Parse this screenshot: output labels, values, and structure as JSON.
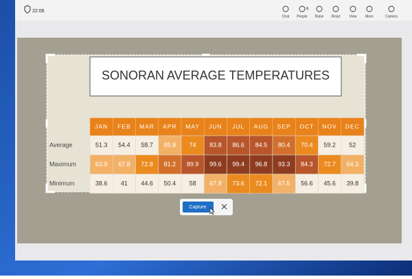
{
  "toolbar": {
    "time": "22:06",
    "buttons": [
      {
        "label": "Chat"
      },
      {
        "label": "People",
        "badge": "9"
      },
      {
        "label": "Raise"
      },
      {
        "label": "React"
      },
      {
        "label": "View"
      },
      {
        "label": "More"
      },
      {
        "label": "Camera"
      }
    ]
  },
  "table": {
    "title": "SONORAN AVERAGE TEMPERATURES",
    "months": [
      "JAN",
      "FEB",
      "MAR",
      "APR",
      "MAY",
      "JUN",
      "JUL",
      "AUG",
      "SEP",
      "OCT",
      "NOV",
      "DEC"
    ],
    "rows": [
      {
        "label": "Average",
        "values": [
          51.3,
          54.4,
          58.7,
          65.8,
          74,
          83.8,
          86.6,
          84.5,
          80.4,
          70.4,
          59.2,
          52
        ]
      },
      {
        "label": "Maximum",
        "values": [
          63.9,
          67.8,
          72.8,
          81.2,
          89.9,
          99.6,
          99.4,
          96.8,
          93.3,
          84.3,
          72.7,
          64.3
        ]
      },
      {
        "label": "Minimum",
        "values": [
          38.6,
          41,
          44.6,
          50.4,
          58,
          67.9,
          73.6,
          72.1,
          67.5,
          56.6,
          45.6,
          39.8
        ]
      }
    ]
  },
  "capture": {
    "button": "Capture"
  }
}
